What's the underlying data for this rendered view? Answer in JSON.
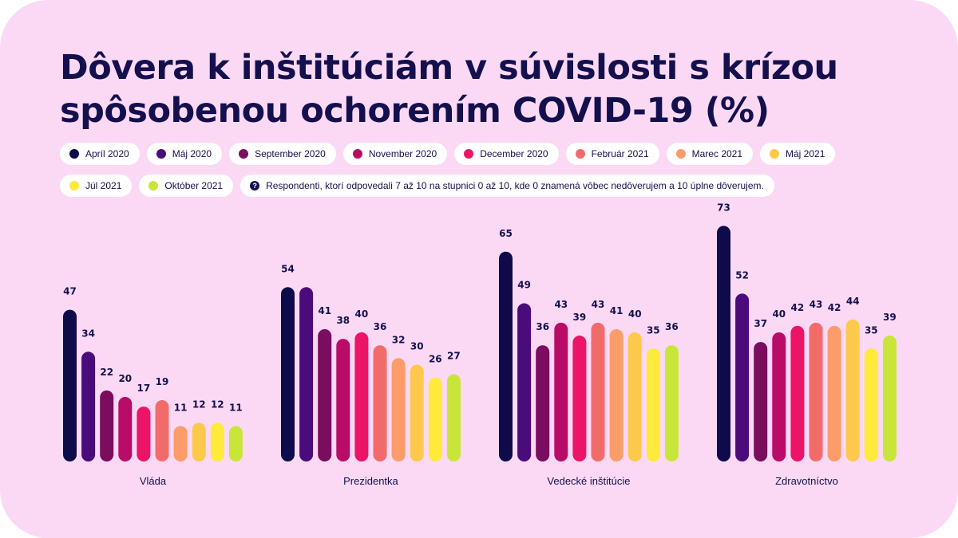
{
  "title": "Dôvera k inštitúciám v súvislosti s krízou spôsobenou ochorením COVID-19 (%)",
  "note": "Respondenti, ktorí odpovedali 7 až 10 na stupnici 0 až 10, kde 0 znamená vôbec nedôverujem a 10 úplne dôverujem.",
  "note_icon": "question-mark-icon",
  "legend": [
    {
      "label": "Apríl 2020",
      "color": "#0d0b4a"
    },
    {
      "label": "Máj 2020",
      "color": "#4a0c7a"
    },
    {
      "label": "September 2020",
      "color": "#7a0d5e"
    },
    {
      "label": "November 2020",
      "color": "#b80c66"
    },
    {
      "label": "December 2020",
      "color": "#ec1466"
    },
    {
      "label": "Február 2021",
      "color": "#f26b6b"
    },
    {
      "label": "Marec 2021",
      "color": "#fb9c6a"
    },
    {
      "label": "Máj 2021",
      "color": "#fdc94d"
    },
    {
      "label": "Júl 2021",
      "color": "#fdea3a"
    },
    {
      "label": "Október 2021",
      "color": "#c8e63a"
    }
  ],
  "chart_data": {
    "type": "bar",
    "title": "Dôvera k inštitúciám v súvislosti s krízou spôsobenou ochorením COVID-19 (%)",
    "categories": [
      "Vláda",
      "Prezidentka",
      "Vedecké inštitúcie",
      "Zdravotníctvo"
    ],
    "series": [
      {
        "name": "Apríl 2020",
        "values": [
          47,
          54,
          65,
          73
        ]
      },
      {
        "name": "Máj 2020",
        "values": [
          34,
          54,
          49,
          52
        ]
      },
      {
        "name": "September 2020",
        "values": [
          22,
          41,
          36,
          37
        ]
      },
      {
        "name": "November 2020",
        "values": [
          20,
          38,
          43,
          40
        ]
      },
      {
        "name": "December 2020",
        "values": [
          17,
          40,
          39,
          42
        ]
      },
      {
        "name": "Február 2021",
        "values": [
          19,
          36,
          43,
          43
        ]
      },
      {
        "name": "Marec 2021",
        "values": [
          11,
          32,
          41,
          42
        ]
      },
      {
        "name": "Máj 2021",
        "values": [
          12,
          30,
          40,
          44
        ]
      },
      {
        "name": "Júl 2021",
        "values": [
          12,
          26,
          35,
          35
        ]
      },
      {
        "name": "Október 2021",
        "values": [
          11,
          27,
          36,
          39
        ]
      }
    ],
    "value_labels_shown": [
      [
        47,
        34,
        22,
        20,
        17,
        19,
        11,
        12,
        12,
        11
      ],
      [
        54,
        null,
        41,
        38,
        40,
        36,
        32,
        30,
        26,
        27
      ],
      [
        65,
        49,
        36,
        43,
        39,
        43,
        41,
        40,
        35,
        36
      ],
      [
        73,
        52,
        37,
        40,
        42,
        43,
        42,
        44,
        35,
        39
      ]
    ],
    "ylim": [
      0,
      73
    ],
    "grid": false,
    "legend_position": "top"
  }
}
